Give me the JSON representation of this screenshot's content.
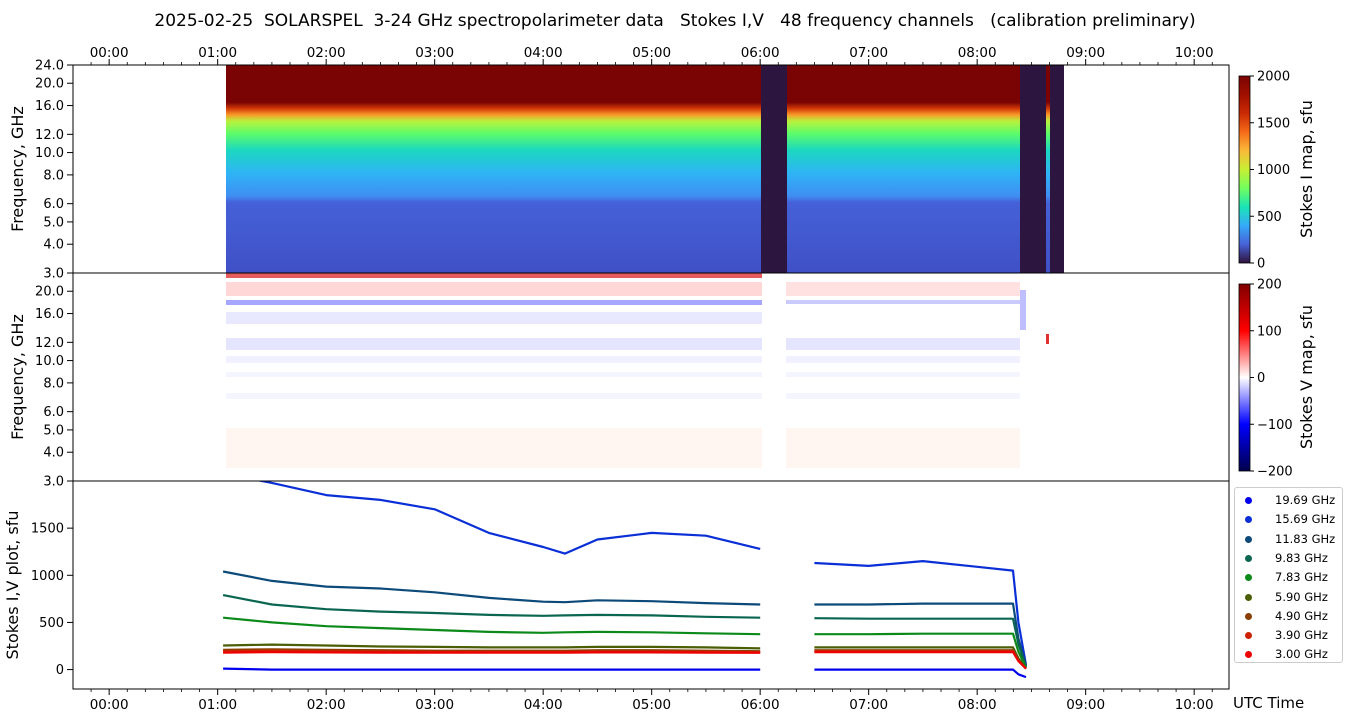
{
  "title": "2025-02-25  SOLARSPEL  3-24 GHz spectropolarimeter data   Stokes I,V   48 frequency channels   (calibration preliminary)",
  "time_ticks": [
    "00:00",
    "01:00",
    "02:00",
    "03:00",
    "04:00",
    "05:00",
    "06:00",
    "07:00",
    "08:00",
    "09:00",
    "10:00"
  ],
  "xlabel": "UTC Time",
  "colors": {
    "background": "#ffffff",
    "stokes_i_min": "#30123b",
    "stokes_i_max": "#7a0403",
    "stokes_v_neg": "#00008b",
    "stokes_v_pos": "#8b0000"
  },
  "chart_data": [
    {
      "type": "heatmap",
      "panel": "Stokes I map",
      "ylabel": "Frequency, GHz",
      "yticks": [
        "3.0",
        "4.0",
        "5.0",
        "6.0",
        "8.0",
        "10.0",
        "12.0",
        "16.0",
        "20.0",
        "24.0"
      ],
      "ylim": [
        3.0,
        24.0
      ],
      "yscale": "log",
      "xlim": [
        "23:40",
        "10:20"
      ],
      "data_range": [
        "01:04",
        "08:48"
      ],
      "colorbar": {
        "label": "Stokes I map, sfu",
        "ticks": [
          "0",
          "500",
          "1000",
          "1500",
          "2000"
        ],
        "range": [
          0,
          2000
        ],
        "colormap": "turbo"
      },
      "gaps": [
        [
          "06:00",
          "06:15"
        ],
        [
          "08:25",
          "08:27"
        ],
        [
          "08:38",
          "08:41"
        ]
      ]
    },
    {
      "type": "heatmap",
      "panel": "Stokes V map",
      "ylabel": "Frequency, GHz",
      "yticks": [
        "3.0",
        "4.0",
        "5.0",
        "6.0",
        "8.0",
        "10.0",
        "12.0",
        "16.0",
        "20.0"
      ],
      "ylim": [
        3.0,
        24.0
      ],
      "yscale": "log",
      "colorbar": {
        "label": "Stokes V map, sfu",
        "ticks": [
          "200",
          "100",
          "0",
          "−100",
          "−200"
        ],
        "range": [
          -200,
          200
        ],
        "colormap": "seismic"
      }
    },
    {
      "type": "line",
      "panel": "Stokes I,V plot",
      "ylabel": "Stokes I,V plot, sfu",
      "yticks": [
        "0",
        "500",
        "1000",
        "1500"
      ],
      "ylim": [
        -100,
        2000
      ],
      "x_hours": [
        1.05,
        1.5,
        2.0,
        2.5,
        3.0,
        3.5,
        4.0,
        4.2,
        4.5,
        5.0,
        5.5,
        6.0,
        6.5,
        7.0,
        7.5,
        8.0,
        8.33,
        8.38,
        8.45
      ],
      "series": [
        {
          "name": "19.69 GHz",
          "color": "#0000ee",
          "values": [
            10,
            0,
            0,
            0,
            0,
            0,
            0,
            0,
            0,
            0,
            0,
            0,
            0,
            0,
            0,
            0,
            0,
            -50,
            -80
          ]
        },
        {
          "name": "15.69 GHz",
          "color": "#0a2fd6",
          "values": [
            2080,
            1980,
            1850,
            1800,
            1700,
            1450,
            1300,
            1230,
            1380,
            1450,
            1420,
            1280,
            1130,
            1100,
            1150,
            1090,
            1050,
            500,
            50
          ]
        },
        {
          "name": "11.83 GHz",
          "color": "#0c4a7a",
          "values": [
            1040,
            940,
            880,
            860,
            820,
            760,
            720,
            715,
            735,
            725,
            705,
            690,
            690,
            690,
            700,
            700,
            700,
            330,
            40
          ]
        },
        {
          "name": "9.83 GHz",
          "color": "#0a6650",
          "values": [
            790,
            690,
            640,
            615,
            600,
            580,
            570,
            575,
            580,
            575,
            560,
            550,
            545,
            540,
            540,
            540,
            540,
            270,
            30
          ]
        },
        {
          "name": "7.83 GHz",
          "color": "#0b8a1a",
          "values": [
            550,
            500,
            460,
            440,
            420,
            400,
            390,
            395,
            400,
            395,
            385,
            375,
            375,
            375,
            380,
            380,
            380,
            190,
            20
          ]
        },
        {
          "name": "5.90 GHz",
          "color": "#4a5e05",
          "values": [
            255,
            265,
            255,
            245,
            240,
            235,
            235,
            235,
            240,
            240,
            235,
            225,
            235,
            235,
            235,
            235,
            235,
            120,
            10
          ]
        },
        {
          "name": "4.90 GHz",
          "color": "#8a3f00",
          "values": [
            210,
            215,
            210,
            205,
            200,
            200,
            200,
            200,
            205,
            205,
            200,
            195,
            205,
            205,
            205,
            205,
            205,
            100,
            10
          ]
        },
        {
          "name": "3.90 GHz",
          "color": "#cc2200",
          "values": [
            195,
            200,
            195,
            192,
            190,
            190,
            190,
            190,
            192,
            192,
            190,
            185,
            195,
            195,
            195,
            195,
            195,
            95,
            10
          ]
        },
        {
          "name": "3.00 GHz",
          "color": "#ee0000",
          "values": [
            180,
            185,
            182,
            180,
            180,
            180,
            180,
            180,
            182,
            182,
            180,
            178,
            185,
            185,
            185,
            185,
            185,
            90,
            10
          ]
        }
      ],
      "gap": [
        "06:00",
        "06:15"
      ]
    }
  ]
}
